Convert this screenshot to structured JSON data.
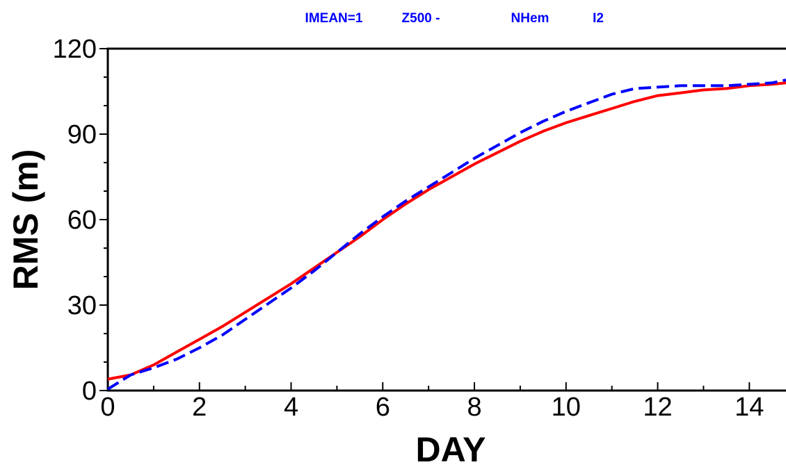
{
  "chart_data": {
    "type": "line",
    "title_parts": [
      "IMEAN=1",
      "Z500 -",
      "NHem",
      "I2"
    ],
    "title_color": "#0000ff",
    "xlabel": "DAY",
    "ylabel": "RMS (m)",
    "xlim": [
      0,
      14.8
    ],
    "ylim": [
      0,
      120
    ],
    "x_ticks": [
      0,
      2,
      4,
      6,
      8,
      10,
      12,
      14
    ],
    "y_ticks": [
      0,
      30,
      60,
      90,
      120
    ],
    "x_minor_step": 1,
    "y_minor_step": 10,
    "grid": false,
    "series": [
      {
        "color": "#ff0000",
        "style": "solid",
        "x": [
          0,
          0.5,
          1,
          1.5,
          2,
          2.5,
          3,
          3.5,
          4,
          4.5,
          5,
          5.5,
          6,
          6.5,
          7,
          7.5,
          8,
          8.5,
          9,
          9.5,
          10,
          10.5,
          11,
          11.5,
          12,
          12.5,
          13,
          13.5,
          14,
          14.5,
          14.8
        ],
        "y": [
          4,
          5.5,
          9,
          13.5,
          18,
          22.5,
          27.5,
          32.5,
          37.5,
          43,
          48.5,
          54,
          60,
          65.5,
          70.5,
          75,
          79.5,
          83.5,
          87.5,
          91,
          94,
          96.5,
          99,
          101.5,
          103.5,
          104.5,
          105.5,
          106,
          107,
          107.5,
          108
        ]
      },
      {
        "color": "#0000ff",
        "style": "dashed",
        "x": [
          0,
          0.5,
          1,
          1.5,
          2,
          2.5,
          3,
          3.5,
          4,
          4.5,
          5,
          5.5,
          6,
          6.5,
          7,
          7.5,
          8,
          8.5,
          9,
          9.5,
          10,
          10.5,
          11,
          11.5,
          12,
          12.5,
          13,
          13.5,
          14,
          14.5,
          14.8
        ],
        "y": [
          0.5,
          5.5,
          8,
          11,
          15,
          19.5,
          25,
          30.5,
          36,
          42,
          48.5,
          55,
          61,
          66.5,
          71.5,
          76.5,
          81.5,
          86,
          90.5,
          94.5,
          98,
          101,
          104,
          106,
          106.5,
          107,
          107,
          107,
          107.5,
          108,
          109
        ]
      }
    ]
  }
}
